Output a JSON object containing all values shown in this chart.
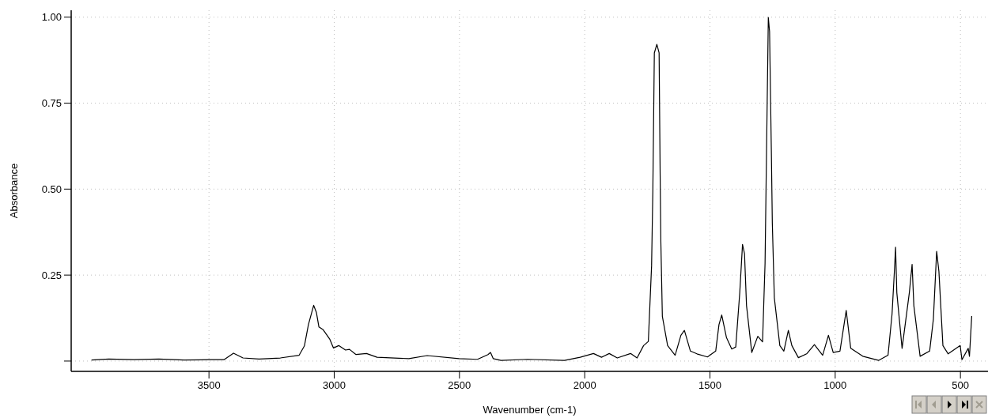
{
  "chart_data": {
    "type": "line",
    "xlabel": "Wavenumber (cm-1)",
    "ylabel": "Absorbance",
    "xlim": [
      4050,
      390
    ],
    "ylim": [
      -0.03,
      1.02
    ],
    "xticks": [
      3500,
      3000,
      2500,
      2000,
      1500,
      1000,
      500
    ],
    "yticks": [
      {
        "value": 0,
        "label": null
      },
      {
        "value": 0.25,
        "label": "0.25"
      },
      {
        "value": 0.5,
        "label": "0.50"
      },
      {
        "value": 0.75,
        "label": "0.75"
      },
      {
        "value": 1.0,
        "label": "1.00"
      }
    ],
    "grid": true,
    "marker": "none",
    "line_style": "solid",
    "series": [
      {
        "color": "#000000",
        "x": [
          3969,
          3900,
          3800,
          3700,
          3600,
          3500,
          3440,
          3402,
          3364,
          3300,
          3215,
          3140,
          3119,
          3103,
          3082,
          3071,
          3061,
          3044,
          3018,
          3003,
          2982,
          2955,
          2939,
          2913,
          2871,
          2829,
          2702,
          2629,
          2502,
          2428,
          2386,
          2376,
          2365,
          2334,
          2228,
          2081,
          2018,
          1965,
          1933,
          1902,
          1870,
          1817,
          1791,
          1765,
          1746,
          1733,
          1728,
          1722,
          1712,
          1703,
          1699,
          1696,
          1690,
          1669,
          1639,
          1616,
          1602,
          1578,
          1552,
          1510,
          1477,
          1464,
          1453,
          1434,
          1413,
          1397,
          1381,
          1370,
          1362,
          1354,
          1333,
          1309,
          1290,
          1280,
          1274,
          1267,
          1262,
          1255,
          1251,
          1243,
          1221,
          1205,
          1187,
          1173,
          1147,
          1114,
          1083,
          1050,
          1027,
          1008,
          981,
          956,
          938,
          890,
          826,
          789,
          773,
          764,
          759,
          754,
          733,
          704,
          693,
          686,
          661,
          623,
          608,
          595,
          586,
          570,
          549,
          501,
          494,
          469,
          464,
          455
        ],
        "values": [
          0.003,
          0.006,
          0.004,
          0.006,
          0.003,
          0.004,
          0.004,
          0.023,
          0.009,
          0.006,
          0.009,
          0.017,
          0.044,
          0.106,
          0.162,
          0.141,
          0.099,
          0.091,
          0.064,
          0.038,
          0.045,
          0.032,
          0.034,
          0.019,
          0.022,
          0.011,
          0.007,
          0.016,
          0.007,
          0.005,
          0.019,
          0.025,
          0.007,
          0.002,
          0.005,
          0.002,
          0.011,
          0.022,
          0.011,
          0.022,
          0.009,
          0.022,
          0.009,
          0.045,
          0.057,
          0.277,
          0.494,
          0.896,
          0.921,
          0.896,
          0.556,
          0.346,
          0.13,
          0.045,
          0.017,
          0.075,
          0.089,
          0.029,
          0.021,
          0.012,
          0.029,
          0.106,
          0.134,
          0.068,
          0.035,
          0.041,
          0.199,
          0.339,
          0.312,
          0.161,
          0.025,
          0.072,
          0.056,
          0.285,
          0.617,
          0.999,
          0.958,
          0.617,
          0.401,
          0.184,
          0.045,
          0.029,
          0.089,
          0.045,
          0.01,
          0.021,
          0.048,
          0.017,
          0.075,
          0.025,
          0.029,
          0.147,
          0.037,
          0.014,
          0.002,
          0.017,
          0.137,
          0.257,
          0.331,
          0.199,
          0.037,
          0.199,
          0.281,
          0.161,
          0.014,
          0.029,
          0.122,
          0.319,
          0.261,
          0.045,
          0.021,
          0.045,
          0.004,
          0.037,
          0.014,
          0.131
        ]
      }
    ]
  }
}
